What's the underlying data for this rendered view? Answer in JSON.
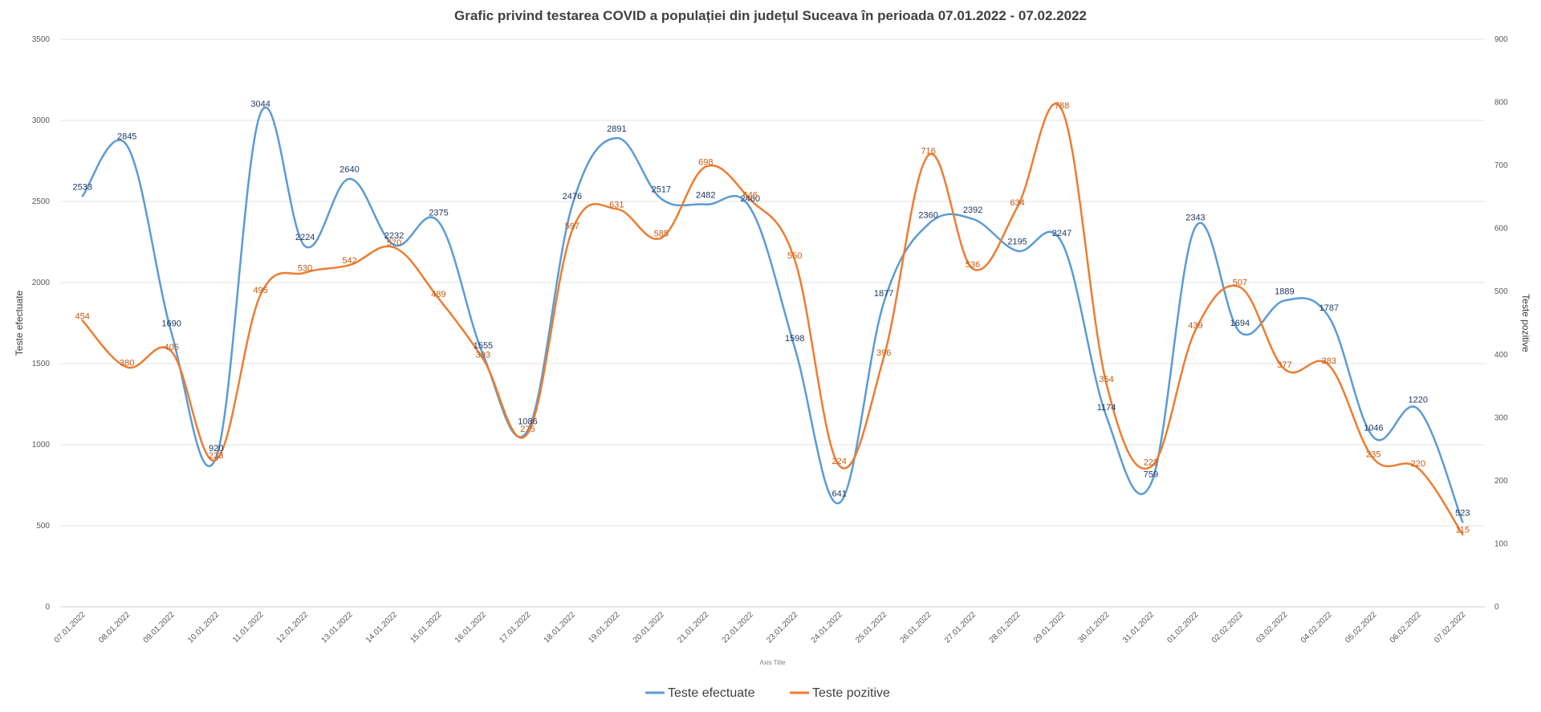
{
  "chart_data": {
    "type": "line",
    "title": "Grafic privind testarea COVID a populației din județul Suceava în perioada 07.01.2022  - 07.02.2022",
    "xlabel": "Axis Title",
    "ylabel": "Teste efectuate",
    "y2label": "Teste pozitive",
    "ylim": [
      0,
      3500
    ],
    "y2lim": [
      0,
      900
    ],
    "yticks": [
      0,
      500,
      1000,
      1500,
      2000,
      2500,
      3000,
      3500
    ],
    "y2ticks": [
      0,
      100,
      200,
      300,
      400,
      500,
      600,
      700,
      800,
      900
    ],
    "grid": true,
    "legend_position": "bottom",
    "categories": [
      "07.01.2022",
      "08.01.2022",
      "09.01.2022",
      "10.01.2022",
      "11.01.2022",
      "12.01.2022",
      "13.01.2022",
      "14.01.2022",
      "15.01.2022",
      "16.01.2022",
      "17.01.2022",
      "18.01.2022",
      "19.01.2022",
      "20.01.2022",
      "21.01.2022",
      "22.01.2022",
      "23.01.2022",
      "24.01.2022",
      "25.01.2022",
      "26.01.2022",
      "27.01.2022",
      "28.01.2022",
      "29.01.2022",
      "30.01.2022",
      "31.01.2022",
      "01.02.2022",
      "02.02.2022",
      "03.02.2022",
      "04.02.2022",
      "05.02.2022",
      "06.02.2022",
      "07.02.2022"
    ],
    "series": [
      {
        "name": "Teste efectuate",
        "axis": "left",
        "color": "#5B9BD5",
        "values": [
          2533,
          2845,
          1690,
          920,
          3044,
          2224,
          2640,
          2232,
          2375,
          1555,
          1086,
          2476,
          2891,
          2517,
          2482,
          2460,
          1598,
          641,
          1877,
          2360,
          2392,
          2195,
          2247,
          1174,
          759,
          2343,
          1694,
          1889,
          1787,
          1046,
          1220,
          523
        ]
      },
      {
        "name": "Teste pozitive",
        "axis": "right",
        "color": "#ED7D31",
        "values": [
          454,
          380,
          405,
          233,
          495,
          530,
          542,
          570,
          489,
          393,
          275,
          597,
          631,
          585,
          698,
          646,
          550,
          224,
          396,
          716,
          536,
          634,
          788,
          354,
          222,
          439,
          507,
          377,
          383,
          235,
          220,
          115
        ]
      }
    ]
  }
}
